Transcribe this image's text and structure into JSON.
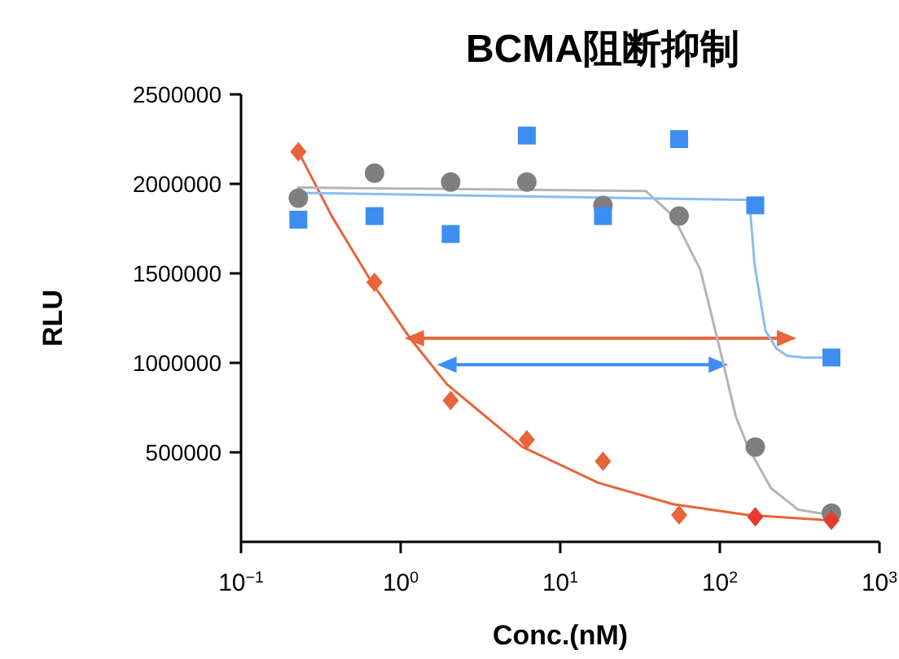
{
  "chart_data": {
    "type": "scatter",
    "title": "BCMA阻断抑制",
    "xlabel": "Conc.(nM)",
    "ylabel": "RLU",
    "log": "x",
    "xlim": [
      0.1,
      1000
    ],
    "xticks": [
      {
        "value": 0.1,
        "label": "10$^{−1}$"
      },
      {
        "value": 1,
        "label": "10$^{0}$"
      },
      {
        "value": 10,
        "label": "10$^{1}$"
      },
      {
        "value": 100,
        "label": "10$^{2}$"
      },
      {
        "value": 1000,
        "label": "10$^{3}$"
      }
    ],
    "ylim": [
      0,
      2500000
    ],
    "yticks": [
      500000,
      1000000,
      1500000,
      2000000,
      2500000
    ],
    "series": [
      {
        "type": "line",
        "color": "#e8643a",
        "x": [
          0.2286,
          0.37,
          0.66,
          1.14,
          1.95,
          5.8,
          17.3,
          51,
          150,
          500
        ],
        "values": [
          2180000,
          1820000,
          1450000,
          1140000,
          880000,
          530000,
          330000,
          210000,
          150000,
          120000
        ]
      },
      {
        "type": "line",
        "color": "#b4b4b4",
        "x": [
          0.2286,
          34.4,
          51,
          75.5,
          103,
          126,
          150,
          209,
          309,
          500
        ],
        "values": [
          1980000,
          1960000,
          1820000,
          1520000,
          1030000,
          700000,
          530000,
          300000,
          180000,
          150000
        ]
      },
      {
        "type": "line",
        "color": "#8cbcf0",
        "x": [
          0.2286,
          153,
          165,
          193,
          226,
          264,
          334,
          500
        ],
        "values": [
          1950000,
          1910000,
          1550000,
          1180000,
          1080000,
          1040000,
          1030000,
          1030000
        ]
      },
      {
        "color": "#7f7f7f",
        "marker": "circle",
        "x": [
          0.2286,
          0.686,
          2.058,
          6.173,
          18.52,
          55.56,
          166.7,
          500
        ],
        "values": [
          1920000,
          2060000,
          2010000,
          2010000,
          1880000,
          1820000,
          530000,
          160000
        ]
      },
      {
        "color": "#3d8ef0",
        "marker": "square",
        "x": [
          0.2286,
          0.686,
          2.058,
          6.173,
          18.52,
          55.56,
          166.7,
          500
        ],
        "values": [
          1800000,
          1820000,
          1720000,
          2270000,
          1820000,
          2250000,
          1880000,
          1030000
        ]
      },
      {
        "colors": [
          "#e8643a",
          "#e8643a",
          "#e8643a",
          "#e8643a",
          "#e8643a",
          "#e8643a",
          "#e83a2a",
          "#e83a2a"
        ],
        "marker": "diamond",
        "x": [
          0.2286,
          0.686,
          2.058,
          6.173,
          18.52,
          55.56,
          166.7,
          500
        ],
        "values": [
          2180000,
          1450000,
          790000,
          570000,
          450000,
          150000,
          140000,
          120000
        ]
      }
    ]
  }
}
